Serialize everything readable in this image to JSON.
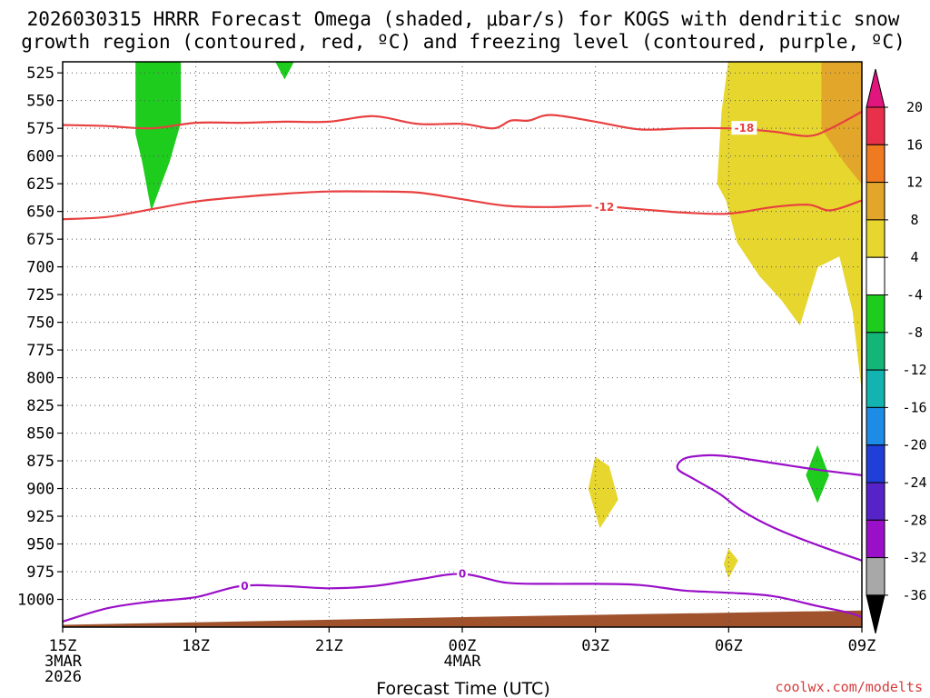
{
  "chart_data": {
    "type": "heatmap",
    "title_line1": "2026030315 HRRR Forecast Omega (shaded, μbar/s) for KOGS with dendritic snow",
    "title_line2": "growth region (contoured, red, ºC) and freezing level (contoured, purple, ºC)",
    "xlabel": "Forecast Time (UTC)",
    "credit": "coolwx.com/modelts",
    "x_range_hours": [
      0,
      18
    ],
    "x_ticks": [
      {
        "hour": 0,
        "label": "15Z",
        "date": "3MAR",
        "year": "2026"
      },
      {
        "hour": 3,
        "label": "18Z"
      },
      {
        "hour": 6,
        "label": "21Z"
      },
      {
        "hour": 9,
        "label": "00Z",
        "date": "4MAR"
      },
      {
        "hour": 12,
        "label": "03Z"
      },
      {
        "hour": 15,
        "label": "06Z"
      },
      {
        "hour": 18,
        "label": "09Z"
      }
    ],
    "y_range_hpa": [
      515,
      1025
    ],
    "y_ticks": [
      525,
      550,
      575,
      600,
      625,
      650,
      675,
      700,
      725,
      750,
      775,
      800,
      825,
      850,
      875,
      900,
      925,
      950,
      975,
      1000
    ],
    "colorbar": {
      "labels": [
        "20",
        "16",
        "12",
        "8",
        "4",
        "-4",
        "-8",
        "-12",
        "-16",
        "-20",
        "-24",
        "-28",
        "-32",
        "-36"
      ],
      "colors": [
        "#e8304a",
        "#f07a20",
        "#e2a62a",
        "#e6d62e",
        "#ffffff",
        "#1dcc1d",
        "#13b676",
        "#12b3b0",
        "#1e8be6",
        "#1f3fd8",
        "#5523c8",
        "#9a10c8",
        "#a8a8a8"
      ],
      "top_arrow_color": "#e0157d",
      "bottom_arrow_color": "#000000"
    },
    "omega_regions": [
      {
        "value": -6,
        "color": "#1dcc1d",
        "points": [
          [
            1.65,
            515
          ],
          [
            2.65,
            515
          ],
          [
            2.65,
            570
          ],
          [
            2.4,
            605
          ],
          [
            2.0,
            648
          ],
          [
            1.8,
            605
          ],
          [
            1.65,
            580
          ]
        ]
      },
      {
        "value": -6,
        "color": "#1dcc1d",
        "points": [
          [
            4.8,
            515
          ],
          [
            5.2,
            515
          ],
          [
            5.0,
            530
          ]
        ]
      },
      {
        "value": 5,
        "color": "#e6d62e",
        "points": [
          [
            15.0,
            515
          ],
          [
            18.0,
            515
          ],
          [
            18.0,
            810
          ],
          [
            17.8,
            740
          ],
          [
            17.5,
            690
          ],
          [
            17.0,
            700
          ],
          [
            16.6,
            752
          ],
          [
            16.2,
            730
          ],
          [
            15.7,
            708
          ],
          [
            15.2,
            678
          ],
          [
            14.95,
            640
          ],
          [
            14.75,
            625
          ],
          [
            14.85,
            560
          ]
        ]
      },
      {
        "value": 10,
        "color": "#e2a62a",
        "points": [
          [
            17.1,
            515
          ],
          [
            18.0,
            515
          ],
          [
            18.0,
            625
          ],
          [
            17.6,
            605
          ],
          [
            17.1,
            575
          ]
        ]
      },
      {
        "value": 5,
        "color": "#e6d62e",
        "points": [
          [
            12.0,
            872
          ],
          [
            12.3,
            880
          ],
          [
            12.5,
            910
          ],
          [
            12.1,
            935
          ],
          [
            11.85,
            900
          ]
        ]
      },
      {
        "value": 5,
        "color": "#e6d62e",
        "points": [
          [
            15.0,
            955
          ],
          [
            15.2,
            965
          ],
          [
            15.0,
            980
          ],
          [
            14.9,
            968
          ]
        ]
      },
      {
        "value": -6,
        "color": "#1dcc1d",
        "points": [
          [
            17.0,
            862
          ],
          [
            17.25,
            888
          ],
          [
            17.0,
            912
          ],
          [
            16.75,
            888
          ]
        ]
      }
    ],
    "dgz_contours": [
      {
        "label": "-18",
        "color": "#e84040",
        "points": [
          [
            0,
            572
          ],
          [
            1,
            573
          ],
          [
            2,
            575
          ],
          [
            3,
            570
          ],
          [
            4,
            570
          ],
          [
            5,
            569
          ],
          [
            6,
            569
          ],
          [
            7,
            564
          ],
          [
            8,
            571
          ],
          [
            9,
            571
          ],
          [
            9.7,
            575
          ],
          [
            10.1,
            568
          ],
          [
            10.5,
            568
          ],
          [
            11,
            563
          ],
          [
            12,
            569
          ],
          [
            13,
            576
          ],
          [
            14,
            575
          ],
          [
            15,
            575
          ],
          [
            16,
            578
          ],
          [
            16.8,
            582
          ],
          [
            17.3,
            575
          ],
          [
            18,
            560
          ]
        ]
      },
      {
        "label": "-12",
        "color": "#e84040",
        "points": [
          [
            0,
            657
          ],
          [
            1,
            655
          ],
          [
            2,
            648
          ],
          [
            3,
            641
          ],
          [
            4,
            637
          ],
          [
            5,
            634
          ],
          [
            6,
            632
          ],
          [
            7,
            632
          ],
          [
            8,
            633
          ],
          [
            9,
            639
          ],
          [
            10,
            645
          ],
          [
            11,
            646
          ],
          [
            12,
            645
          ],
          [
            13,
            648
          ],
          [
            14,
            651
          ],
          [
            15,
            652
          ],
          [
            16,
            646
          ],
          [
            16.8,
            644
          ],
          [
            17.3,
            649
          ],
          [
            18,
            640
          ]
        ]
      }
    ],
    "freezing_contours": [
      {
        "label": "0",
        "color": "#9a10c8",
        "points": [
          [
            0,
            1020
          ],
          [
            1,
            1008
          ],
          [
            2,
            1002
          ],
          [
            3,
            998
          ],
          [
            4,
            988
          ],
          [
            5,
            988
          ],
          [
            6,
            990
          ],
          [
            7,
            988
          ],
          [
            8,
            982
          ],
          [
            9,
            977
          ],
          [
            10,
            985
          ],
          [
            11,
            986
          ],
          [
            12,
            986
          ],
          [
            13,
            987
          ],
          [
            14,
            992
          ],
          [
            15,
            994
          ],
          [
            16,
            997
          ],
          [
            17,
            1006
          ],
          [
            17.7,
            1012
          ],
          [
            18,
            1016
          ]
        ]
      },
      {
        "label": "",
        "color": "#9a10c8",
        "points": [
          [
            18,
            888
          ],
          [
            17,
            883
          ],
          [
            16,
            877
          ],
          [
            15,
            871
          ],
          [
            14.5,
            870
          ],
          [
            14.0,
            873
          ],
          [
            13.85,
            882
          ],
          [
            14.2,
            891
          ],
          [
            14.8,
            905
          ],
          [
            15.3,
            920
          ],
          [
            16,
            935
          ],
          [
            17,
            951
          ],
          [
            18,
            965
          ]
        ]
      }
    ],
    "contour_label_positions": [
      {
        "label": "-18",
        "hour": 15.35,
        "hpa": 575
      },
      {
        "label": "-12",
        "hour": 12.2,
        "hpa": 646
      },
      {
        "label": "0",
        "hour": 4.1,
        "hpa": 988
      },
      {
        "label": "0",
        "hour": 9.0,
        "hpa": 977
      }
    ],
    "terrain": {
      "color": "#a0522d",
      "points": [
        [
          0,
          1023
        ],
        [
          9,
          1016
        ],
        [
          18,
          1010
        ]
      ]
    }
  }
}
